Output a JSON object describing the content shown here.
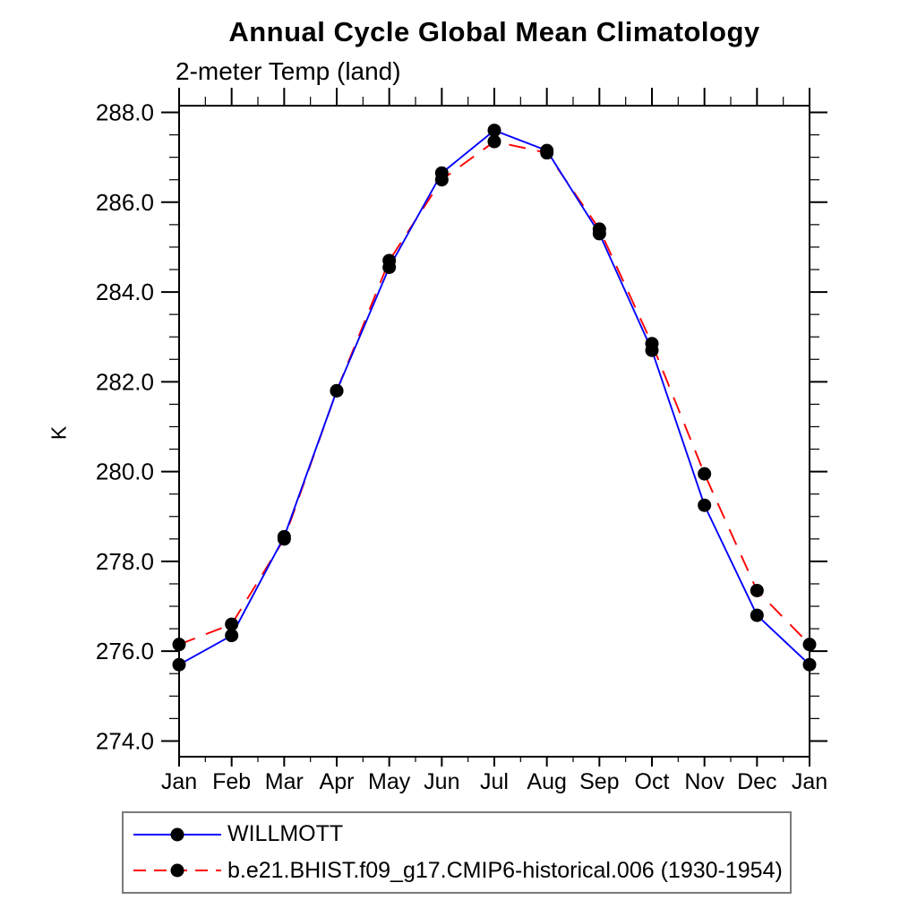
{
  "window": {
    "background": "#ffffff"
  },
  "chart_data": {
    "type": "line",
    "title": "Annual Cycle Global Mean Climatology",
    "subtitle": "2-meter Temp (land)",
    "ylabel": "K",
    "x_categories": [
      "Jan",
      "Feb",
      "Mar",
      "Apr",
      "May",
      "Jun",
      "Jul",
      "Aug",
      "Sep",
      "Oct",
      "Nov",
      "Dec",
      "Jan"
    ],
    "series": [
      {
        "name": "WILLMOTT",
        "color": "#0000ff",
        "line_style": "solid",
        "marker": "black-dot",
        "values": [
          275.7,
          276.35,
          278.55,
          281.8,
          284.55,
          286.65,
          287.6,
          287.15,
          285.3,
          282.7,
          279.25,
          276.8,
          275.7
        ]
      },
      {
        "name": "b.e21.BHIST.f09_g17.CMIP6-historical.006 (1930-1954)",
        "color": "#ff0000",
        "line_style": "dashed",
        "marker": "black-dot",
        "values": [
          276.15,
          276.6,
          278.5,
          281.8,
          284.7,
          286.5,
          287.35,
          287.1,
          285.4,
          282.85,
          279.95,
          277.35,
          276.15
        ]
      }
    ],
    "ylim": [
      273.65,
      288.15
    ],
    "ytick_labels": [
      "274.0",
      "276.0",
      "278.0",
      "280.0",
      "282.0",
      "284.0",
      "286.0",
      "288.0"
    ],
    "y_minor_step": 0.5,
    "x_minor_step": 0.5,
    "grid": false,
    "tick_direction": "outward",
    "marker_color": "#000000",
    "axis_color": "#000000",
    "legend_position": "bottom-left"
  }
}
